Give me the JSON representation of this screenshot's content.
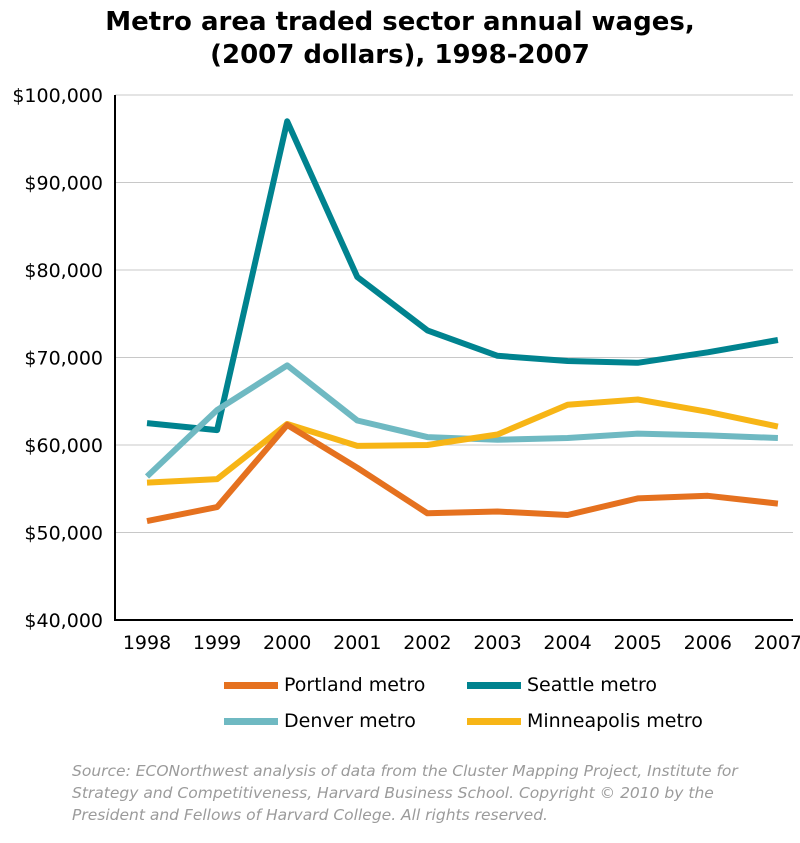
{
  "chart_data": {
    "type": "line",
    "title_lines": [
      "Metro area traded sector annual wages,",
      "(2007 dollars), 1998-2007"
    ],
    "xlabel": "",
    "ylabel": "",
    "categories": [
      "1998",
      "1999",
      "2000",
      "2001",
      "2002",
      "2003",
      "2004",
      "2005",
      "2006",
      "2007"
    ],
    "ylim": [
      40000,
      100000
    ],
    "y_ticks": [
      40000,
      50000,
      60000,
      70000,
      80000,
      90000,
      100000
    ],
    "y_tick_labels": [
      "$40,000",
      "$50,000",
      "$60,000",
      "$70,000",
      "$80,000",
      "$90,000",
      "$100,000"
    ],
    "grid": true,
    "series": [
      {
        "name": "Seattle metro",
        "color": "#00838f",
        "values": [
          62500,
          61700,
          97000,
          79200,
          73100,
          70200,
          69600,
          69400,
          70600,
          72000
        ]
      },
      {
        "name": "Denver metro",
        "color": "#6fb9c2",
        "values": [
          56400,
          64000,
          69100,
          62800,
          60900,
          60600,
          60800,
          61300,
          61100,
          60800
        ]
      },
      {
        "name": "Minneapolis metro",
        "color": "#f7b516",
        "values": [
          55700,
          56100,
          62400,
          59900,
          60000,
          61200,
          64600,
          65200,
          63800,
          62100
        ]
      },
      {
        "name": "Portland metro",
        "color": "#e5711f",
        "values": [
          51300,
          52900,
          62300,
          57400,
          52200,
          52400,
          52000,
          53900,
          54200,
          53300
        ]
      }
    ],
    "legend": [
      {
        "name": "Portland metro",
        "color": "#e5711f"
      },
      {
        "name": "Seattle metro",
        "color": "#00838f"
      },
      {
        "name": "Denver metro",
        "color": "#6fb9c2"
      },
      {
        "name": "Minneapolis metro",
        "color": "#f7b516"
      }
    ],
    "legend_position": "bottom"
  },
  "source_lines": [
    "Source: ECONorthwest analysis of data from the Cluster Mapping Project, Institute for",
    "Strategy and Competitiveness, Harvard Business School. Copyright © 2010 by the",
    "President and Fellows of Harvard College. All rights reserved."
  ]
}
